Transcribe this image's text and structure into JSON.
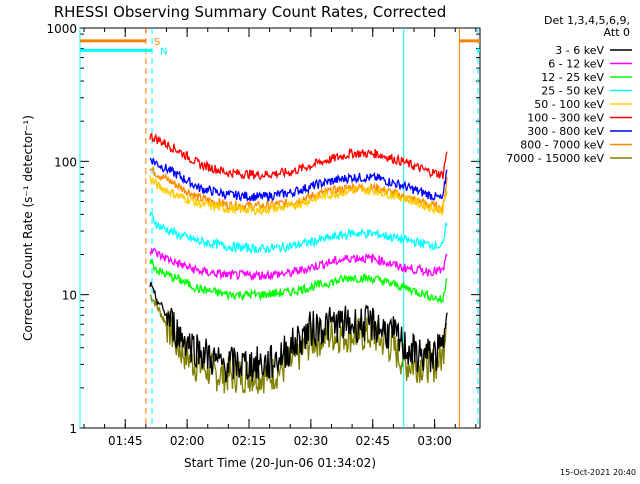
{
  "chart_data": {
    "type": "line",
    "title": "RHESSI Observing Summary Count Rates, Corrected",
    "xlabel": "Start Time (20-Jun-06 01:34:02)",
    "ylabel": "Corrected Count Rate (s⁻¹ detector⁻¹)",
    "y_scale": "log",
    "ylim": [
      1,
      1000
    ],
    "xlim": [
      "01:34:02",
      "03:11:00"
    ],
    "x_ticks": [
      "01:45",
      "02:00",
      "02:15",
      "02:30",
      "02:45",
      "03:00"
    ],
    "y_ticks": [
      "1",
      "10",
      "100",
      "1000"
    ],
    "legend_position": "right",
    "legend_header": [
      "Det 1,3,4,5,6,9,",
      "Att 0"
    ],
    "series": [
      {
        "name": "3 - 6 keV",
        "color": "#000000",
        "x": [
          "01:51:00",
          "01:52:00",
          "01:55:00",
          "01:58:00",
          "02:02:00",
          "02:08:00",
          "02:14:00",
          "02:20:00",
          "02:25:00",
          "02:30:00",
          "02:35:00",
          "02:40:00",
          "02:45:00",
          "02:50:00",
          "02:53:00",
          "02:56:00",
          "03:00:00",
          "03:02:00",
          "03:03:00"
        ],
        "y": [
          12,
          10,
          7,
          5,
          4,
          3,
          3,
          3,
          4,
          5.5,
          6,
          6,
          6,
          5,
          4,
          3.5,
          3.5,
          4,
          10
        ]
      },
      {
        "name": "6 - 12 keV",
        "color": "#ff00ff",
        "x": [
          "01:51:00",
          "01:53:00",
          "01:58:00",
          "02:03:00",
          "02:10:00",
          "02:18:00",
          "02:25:00",
          "02:33:00",
          "02:40:00",
          "02:46:00",
          "02:52:00",
          "02:58:00",
          "03:02:00",
          "03:03:00"
        ],
        "y": [
          22,
          20,
          17,
          15,
          14,
          14,
          14.5,
          17,
          19,
          18.5,
          16,
          15,
          15,
          20
        ]
      },
      {
        "name": "12 - 25 keV",
        "color": "#00ff00",
        "x": [
          "01:51:00",
          "01:53:00",
          "01:58:00",
          "02:03:00",
          "02:10:00",
          "02:18:00",
          "02:25:00",
          "02:33:00",
          "02:40:00",
          "02:46:00",
          "02:52:00",
          "02:58:00",
          "03:02:00",
          "03:03:00"
        ],
        "y": [
          18,
          15,
          13,
          11,
          10,
          10,
          10.5,
          12,
          13.5,
          13,
          11.5,
          10,
          9,
          14
        ]
      },
      {
        "name": "25 - 50 keV",
        "color": "#00ffff",
        "x": [
          "01:51:00",
          "01:53:00",
          "01:58:00",
          "02:03:00",
          "02:10:00",
          "02:18:00",
          "02:25:00",
          "02:33:00",
          "02:40:00",
          "02:46:00",
          "02:52:00",
          "02:58:00",
          "03:02:00",
          "03:03:00"
        ],
        "y": [
          40,
          33,
          28,
          25,
          23,
          22,
          23,
          26,
          29,
          28.5,
          26,
          24,
          23,
          35
        ]
      },
      {
        "name": "50 - 100 keV",
        "color": "#ffcc00",
        "x": [
          "01:51:00",
          "01:53:00",
          "01:58:00",
          "02:03:00",
          "02:10:00",
          "02:18:00",
          "02:25:00",
          "02:33:00",
          "02:40:00",
          "02:46:00",
          "02:52:00",
          "02:58:00",
          "03:02:00",
          "03:03:00"
        ],
        "y": [
          75,
          65,
          55,
          48,
          44,
          43,
          46,
          55,
          61,
          60,
          54,
          46,
          43,
          60
        ]
      },
      {
        "name": "100 - 300 keV",
        "color": "#ff0000",
        "x": [
          "01:51:00",
          "01:53:00",
          "01:58:00",
          "02:03:00",
          "02:10:00",
          "02:18:00",
          "02:25:00",
          "02:33:00",
          "02:40:00",
          "02:46:00",
          "02:52:00",
          "02:58:00",
          "03:02:00",
          "03:03:00"
        ],
        "y": [
          155,
          145,
          120,
          95,
          82,
          79,
          83,
          100,
          115,
          114,
          100,
          85,
          79,
          120
        ]
      },
      {
        "name": "300 - 800 keV",
        "color": "#0000ff",
        "x": [
          "01:51:00",
          "01:53:00",
          "01:58:00",
          "02:03:00",
          "02:10:00",
          "02:18:00",
          "02:25:00",
          "02:33:00",
          "02:40:00",
          "02:46:00",
          "02:52:00",
          "02:58:00",
          "03:02:00",
          "03:03:00"
        ],
        "y": [
          105,
          95,
          78,
          63,
          56,
          54,
          58,
          69,
          76,
          75,
          66,
          57,
          52,
          90
        ]
      },
      {
        "name": "800 - 7000 keV",
        "color": "#ff8c00",
        "x": [
          "01:51:00",
          "01:53:00",
          "01:58:00",
          "02:03:00",
          "02:10:00",
          "02:18:00",
          "02:25:00",
          "02:33:00",
          "02:40:00",
          "02:46:00",
          "02:52:00",
          "02:58:00",
          "03:02:00",
          "03:03:00"
        ],
        "y": [
          88,
          80,
          65,
          53,
          47,
          46,
          49,
          58,
          64,
          63,
          55,
          48,
          44,
          75
        ]
      },
      {
        "name": "7000 - 15000 keV",
        "color": "#808000",
        "x": [
          "01:51:00",
          "01:52:00",
          "01:55:00",
          "01:58:00",
          "02:02:00",
          "02:08:00",
          "02:14:00",
          "02:20:00",
          "02:25:00",
          "02:30:00",
          "02:35:00",
          "02:40:00",
          "02:45:00",
          "02:50:00",
          "02:53:00",
          "02:56:00",
          "03:00:00",
          "03:02:00",
          "03:03:00"
        ],
        "y": [
          10,
          9,
          6,
          4,
          3,
          2.5,
          2.5,
          2.5,
          3,
          4.5,
          5,
          5,
          5,
          4,
          3,
          3,
          3,
          3.5,
          8
        ]
      }
    ],
    "markers": [
      {
        "label": "S",
        "color": "#ff8000",
        "start": "01:50:00",
        "end": "03:06:00",
        "flag_y": 800
      },
      {
        "label": "N",
        "color": "#00ffff",
        "start": "01:51:30",
        "end": "03:10:30",
        "flag_y": 680
      }
    ],
    "vertical_lines": [
      {
        "time": "01:34:02",
        "color": "#00ffff",
        "dash": "solid"
      },
      {
        "time": "01:50:00",
        "color": "#ff8000",
        "dash": "dashed"
      },
      {
        "time": "01:51:30",
        "color": "#00ffff",
        "dash": "dashed"
      },
      {
        "time": "02:52:30",
        "color": "#00ffff",
        "dash": "solid"
      },
      {
        "time": "03:06:00",
        "color": "#ff8000",
        "dash": "solid"
      },
      {
        "time": "03:10:30",
        "color": "#00ffff",
        "dash": "dashed"
      }
    ],
    "timestamp": "15-Oct-2021 20:40"
  }
}
